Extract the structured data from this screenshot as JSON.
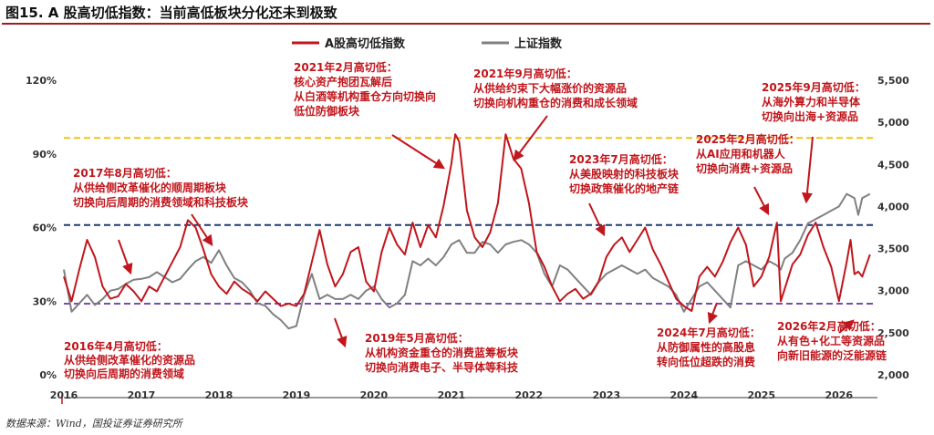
{
  "figure": {
    "title": "图15. A 股高切低指数：当前高低板块分化还未到极致",
    "source": "数据来源：Wind，国投证券证券研究所"
  },
  "chart_data": {
    "type": "line",
    "legend": [
      {
        "name": "A股高切低指数",
        "color": "#c0161c"
      },
      {
        "name": "上证指数",
        "color": "#808080"
      }
    ],
    "x_tick_labels": [
      "2016",
      "2017",
      "2018",
      "2019",
      "2020",
      "2021",
      "2022",
      "2023",
      "2024",
      "2025",
      "2026"
    ],
    "left_axis": {
      "ylim": [
        0,
        1.2
      ],
      "ticks": [
        "0%",
        "30%",
        "60%",
        "90%",
        "120%"
      ]
    },
    "right_axis": {
      "ylim": [
        2000,
        5500
      ],
      "ticks": [
        "2,000",
        "2,500",
        "3,000",
        "3,500",
        "4,000",
        "4,500",
        "5,000",
        "5,500"
      ]
    },
    "reference_lines": [
      {
        "axis": "left",
        "value": 0.965,
        "color": "#f2c318"
      },
      {
        "axis": "left",
        "value": 0.61,
        "color": "#1f3a73"
      },
      {
        "axis": "left",
        "value": 0.29,
        "color": "#7a4cb3"
      }
    ],
    "series": [
      {
        "name": "A股高切低指数",
        "axis": "left",
        "color": "#c0161c",
        "points": [
          [
            2016.0,
            0.4
          ],
          [
            2016.1,
            0.3
          ],
          [
            2016.2,
            0.43
          ],
          [
            2016.3,
            0.55
          ],
          [
            2016.4,
            0.48
          ],
          [
            2016.5,
            0.36
          ],
          [
            2016.6,
            0.31
          ],
          [
            2016.7,
            0.32
          ],
          [
            2016.8,
            0.37
          ],
          [
            2016.9,
            0.34
          ],
          [
            2017.0,
            0.3
          ],
          [
            2017.1,
            0.36
          ],
          [
            2017.2,
            0.34
          ],
          [
            2017.3,
            0.4
          ],
          [
            2017.4,
            0.46
          ],
          [
            2017.5,
            0.52
          ],
          [
            2017.6,
            0.63
          ],
          [
            2017.7,
            0.6
          ],
          [
            2017.8,
            0.51
          ],
          [
            2017.9,
            0.41
          ],
          [
            2018.0,
            0.36
          ],
          [
            2018.1,
            0.33
          ],
          [
            2018.2,
            0.38
          ],
          [
            2018.3,
            0.35
          ],
          [
            2018.4,
            0.33
          ],
          [
            2018.5,
            0.3
          ],
          [
            2018.6,
            0.34
          ],
          [
            2018.7,
            0.31
          ],
          [
            2018.8,
            0.28
          ],
          [
            2018.9,
            0.29
          ],
          [
            2019.0,
            0.28
          ],
          [
            2019.1,
            0.33
          ],
          [
            2019.2,
            0.46
          ],
          [
            2019.3,
            0.59
          ],
          [
            2019.4,
            0.45
          ],
          [
            2019.5,
            0.36
          ],
          [
            2019.6,
            0.41
          ],
          [
            2019.7,
            0.5
          ],
          [
            2019.8,
            0.52
          ],
          [
            2019.9,
            0.38
          ],
          [
            2020.0,
            0.34
          ],
          [
            2020.1,
            0.5
          ],
          [
            2020.2,
            0.6
          ],
          [
            2020.3,
            0.53
          ],
          [
            2020.4,
            0.49
          ],
          [
            2020.5,
            0.62
          ],
          [
            2020.6,
            0.52
          ],
          [
            2020.7,
            0.61
          ],
          [
            2020.8,
            0.56
          ],
          [
            2020.9,
            0.69
          ],
          [
            2021.0,
            0.86
          ],
          [
            2021.05,
            0.98
          ],
          [
            2021.1,
            0.95
          ],
          [
            2021.2,
            0.67
          ],
          [
            2021.3,
            0.56
          ],
          [
            2021.4,
            0.52
          ],
          [
            2021.5,
            0.58
          ],
          [
            2021.6,
            0.7
          ],
          [
            2021.7,
            0.98
          ],
          [
            2021.8,
            0.88
          ],
          [
            2021.9,
            0.84
          ],
          [
            2022.0,
            0.7
          ],
          [
            2022.1,
            0.5
          ],
          [
            2022.2,
            0.44
          ],
          [
            2022.3,
            0.36
          ],
          [
            2022.4,
            0.3
          ],
          [
            2022.5,
            0.33
          ],
          [
            2022.6,
            0.35
          ],
          [
            2022.7,
            0.31
          ],
          [
            2022.8,
            0.33
          ],
          [
            2022.9,
            0.38
          ],
          [
            2023.0,
            0.48
          ],
          [
            2023.1,
            0.53
          ],
          [
            2023.2,
            0.56
          ],
          [
            2023.3,
            0.5
          ],
          [
            2023.4,
            0.55
          ],
          [
            2023.5,
            0.6
          ],
          [
            2023.6,
            0.51
          ],
          [
            2023.7,
            0.45
          ],
          [
            2023.8,
            0.38
          ],
          [
            2023.9,
            0.31
          ],
          [
            2024.0,
            0.28
          ],
          [
            2024.1,
            0.26
          ],
          [
            2024.2,
            0.4
          ],
          [
            2024.3,
            0.44
          ],
          [
            2024.4,
            0.4
          ],
          [
            2024.5,
            0.46
          ],
          [
            2024.6,
            0.54
          ],
          [
            2024.7,
            0.6
          ],
          [
            2024.8,
            0.53
          ],
          [
            2024.9,
            0.36
          ],
          [
            2025.0,
            0.4
          ],
          [
            2025.1,
            0.48
          ],
          [
            2025.2,
            0.62
          ],
          [
            2025.25,
            0.3
          ],
          [
            2025.3,
            0.35
          ],
          [
            2025.4,
            0.45
          ],
          [
            2025.5,
            0.49
          ],
          [
            2025.6,
            0.57
          ],
          [
            2025.7,
            0.62
          ],
          [
            2025.8,
            0.52
          ],
          [
            2025.9,
            0.44
          ],
          [
            2026.0,
            0.3
          ],
          [
            2026.1,
            0.46
          ],
          [
            2026.15,
            0.55
          ],
          [
            2026.2,
            0.41
          ],
          [
            2026.25,
            0.42
          ],
          [
            2026.3,
            0.4
          ],
          [
            2026.4,
            0.49
          ]
        ]
      },
      {
        "name": "上证指数",
        "axis": "right",
        "color": "#808080",
        "points": [
          [
            2016.0,
            3250
          ],
          [
            2016.1,
            2750
          ],
          [
            2016.2,
            2850
          ],
          [
            2016.3,
            2950
          ],
          [
            2016.4,
            2830
          ],
          [
            2016.5,
            2900
          ],
          [
            2016.6,
            3000
          ],
          [
            2016.7,
            3020
          ],
          [
            2016.8,
            3080
          ],
          [
            2016.9,
            3130
          ],
          [
            2017.0,
            3140
          ],
          [
            2017.1,
            3160
          ],
          [
            2017.2,
            3220
          ],
          [
            2017.3,
            3160
          ],
          [
            2017.4,
            3100
          ],
          [
            2017.5,
            3140
          ],
          [
            2017.6,
            3250
          ],
          [
            2017.7,
            3350
          ],
          [
            2017.8,
            3400
          ],
          [
            2017.9,
            3330
          ],
          [
            2018.0,
            3480
          ],
          [
            2018.1,
            3300
          ],
          [
            2018.2,
            3150
          ],
          [
            2018.3,
            3100
          ],
          [
            2018.4,
            3000
          ],
          [
            2018.5,
            2850
          ],
          [
            2018.6,
            2820
          ],
          [
            2018.7,
            2720
          ],
          [
            2018.8,
            2650
          ],
          [
            2018.9,
            2550
          ],
          [
            2019.0,
            2580
          ],
          [
            2019.1,
            2950
          ],
          [
            2019.2,
            3200
          ],
          [
            2019.3,
            2900
          ],
          [
            2019.4,
            2950
          ],
          [
            2019.5,
            2900
          ],
          [
            2019.6,
            2900
          ],
          [
            2019.7,
            2950
          ],
          [
            2019.8,
            2900
          ],
          [
            2019.9,
            3000
          ],
          [
            2020.0,
            3050
          ],
          [
            2020.1,
            2900
          ],
          [
            2020.2,
            2800
          ],
          [
            2020.3,
            2850
          ],
          [
            2020.4,
            2950
          ],
          [
            2020.5,
            3350
          ],
          [
            2020.6,
            3300
          ],
          [
            2020.7,
            3380
          ],
          [
            2020.8,
            3300
          ],
          [
            2020.9,
            3400
          ],
          [
            2021.0,
            3550
          ],
          [
            2021.1,
            3600
          ],
          [
            2021.2,
            3450
          ],
          [
            2021.3,
            3450
          ],
          [
            2021.4,
            3580
          ],
          [
            2021.5,
            3550
          ],
          [
            2021.6,
            3450
          ],
          [
            2021.7,
            3550
          ],
          [
            2021.8,
            3580
          ],
          [
            2021.9,
            3600
          ],
          [
            2022.0,
            3550
          ],
          [
            2022.1,
            3450
          ],
          [
            2022.2,
            3200
          ],
          [
            2022.3,
            3050
          ],
          [
            2022.4,
            3300
          ],
          [
            2022.5,
            3250
          ],
          [
            2022.6,
            3150
          ],
          [
            2022.7,
            3050
          ],
          [
            2022.8,
            2950
          ],
          [
            2022.9,
            3100
          ],
          [
            2023.0,
            3200
          ],
          [
            2023.1,
            3250
          ],
          [
            2023.2,
            3300
          ],
          [
            2023.3,
            3250
          ],
          [
            2023.4,
            3200
          ],
          [
            2023.5,
            3250
          ],
          [
            2023.6,
            3150
          ],
          [
            2023.7,
            3100
          ],
          [
            2023.8,
            3050
          ],
          [
            2023.9,
            2950
          ],
          [
            2024.0,
            2750
          ],
          [
            2024.1,
            2900
          ],
          [
            2024.2,
            3050
          ],
          [
            2024.3,
            3100
          ],
          [
            2024.4,
            3000
          ],
          [
            2024.5,
            2900
          ],
          [
            2024.6,
            2800
          ],
          [
            2024.7,
            3300
          ],
          [
            2024.8,
            3350
          ],
          [
            2024.9,
            3300
          ],
          [
            2025.0,
            3250
          ],
          [
            2025.1,
            3350
          ],
          [
            2025.2,
            3300
          ],
          [
            2025.25,
            3250
          ],
          [
            2025.3,
            3380
          ],
          [
            2025.4,
            3450
          ],
          [
            2025.5,
            3600
          ],
          [
            2025.6,
            3800
          ],
          [
            2025.7,
            3850
          ],
          [
            2025.8,
            3900
          ],
          [
            2025.9,
            3950
          ],
          [
            2026.0,
            4000
          ],
          [
            2026.1,
            4150
          ],
          [
            2026.2,
            4100
          ],
          [
            2026.25,
            3900
          ],
          [
            2026.3,
            4100
          ],
          [
            2026.4,
            4150
          ]
        ]
      }
    ],
    "annotations": [
      {
        "id": "a2016",
        "lines": [
          "2016年4月高切低：",
          "从供给侧改革催化的资源品",
          "切换向后周期的消费领域"
        ]
      },
      {
        "id": "a2017",
        "lines": [
          "2017年8月高切低：",
          "从供给侧改革催化的顺周期板块",
          "切换向后周期的消费领域和科技板块"
        ]
      },
      {
        "id": "a2019",
        "lines": [
          "2019年5月高切低：",
          "从机构资金重仓的消费蓝筹板块",
          "切换向消费电子、半导体等科技"
        ]
      },
      {
        "id": "a2021feb",
        "lines": [
          "2021年2月高切低：",
          "核心资产抱团瓦解后",
          "从白酒等机构重仓方向切换向",
          "低位防御板块"
        ]
      },
      {
        "id": "a2021sep",
        "lines": [
          "2021年9月高切低：",
          "从供给约束下大幅涨价的资源品",
          "切换向机构重仓的消费和成长领域"
        ]
      },
      {
        "id": "a2023",
        "lines": [
          "2023年7月高切低：",
          "从美股映射的科技板块",
          "切换政策催化的地产链"
        ]
      },
      {
        "id": "a2024",
        "lines": [
          "2024年7月高切低：",
          "从防御属性的高股息",
          "转向低位超跌的消费"
        ]
      },
      {
        "id": "a2025feb",
        "lines": [
          "2025年2月高切低：",
          "从AI应用和机器人",
          "切换向消费+资源品"
        ]
      },
      {
        "id": "a2025sep",
        "lines": [
          "2025年9月高切低：",
          "从海外算力和半导体",
          "切换向出海+资源品"
        ]
      },
      {
        "id": "a2026",
        "lines": [
          "2026年2月高切低：",
          "从有色+化工等资源品",
          "向新旧能源的泛能源链"
        ]
      }
    ]
  }
}
